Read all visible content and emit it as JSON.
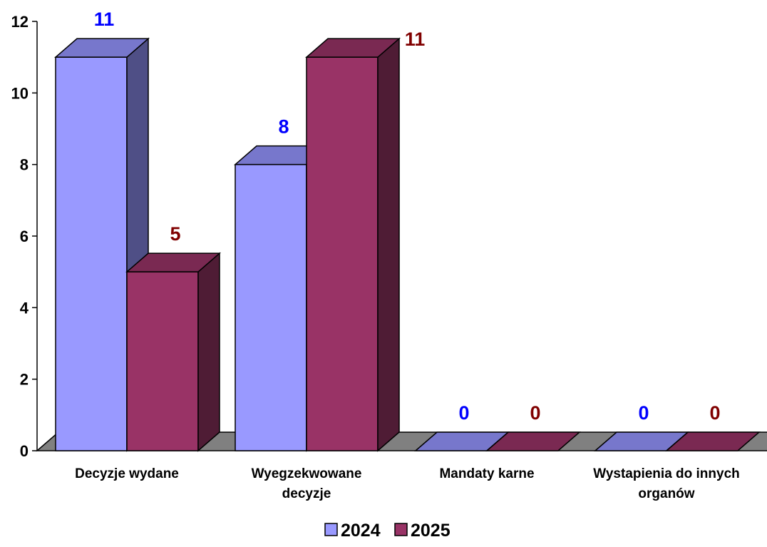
{
  "chart_data": {
    "type": "bar",
    "categories": [
      [
        "Decyzje wydane"
      ],
      [
        "Wyegzekwowane",
        "decyzje"
      ],
      [
        "Mandaty karne"
      ],
      [
        "Wystapienia do innych",
        "organów"
      ]
    ],
    "series": [
      {
        "name": "2024",
        "values": [
          11,
          8,
          0,
          0
        ],
        "color": "#9999ff",
        "side_color": "#4f4f86",
        "top_color": "#7777cc",
        "label_color": "#0000ff"
      },
      {
        "name": "2025",
        "values": [
          5,
          11,
          0,
          0
        ],
        "color": "#993366",
        "side_color": "#4f1c35",
        "top_color": "#7a2952",
        "label_color": "#800000"
      }
    ],
    "yticks": [
      0,
      2,
      4,
      6,
      8,
      10,
      12
    ],
    "ylim": [
      0,
      12
    ],
    "floor_color": "#808080",
    "legend_position": "bottom"
  }
}
